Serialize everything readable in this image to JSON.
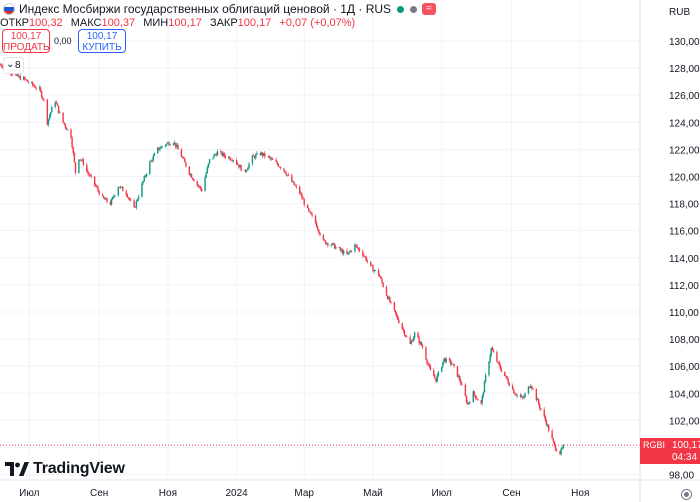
{
  "header": {
    "title": "Индекс Мосбиржи государственных облигаций ценовой · 1Д · RUS",
    "status_colors": {
      "market": "#089981",
      "delayed": "#787b86",
      "badge": "#f7525f"
    },
    "badge_text": "≈",
    "ohlc": [
      {
        "label": "ОТКР",
        "value": "100,32"
      },
      {
        "label": "МАКС",
        "value": "100,37"
      },
      {
        "label": "МИН",
        "value": "100,17"
      },
      {
        "label": "ЗАКР",
        "value": "100,17"
      },
      {
        "label": "",
        "value": "+0,07 (+0,07%)"
      }
    ]
  },
  "trade": {
    "sell_price": "100,17",
    "sell_label": "ПРОДАТЬ",
    "spread": "0,00",
    "buy_price": "100,17",
    "buy_label": "КУПИТЬ"
  },
  "indicators_toggle": {
    "count": "8",
    "icon": "chevron-down-icon"
  },
  "price_tag": {
    "symbol": "RGBI",
    "price": "100,17",
    "countdown": "04:34",
    "color": "#f23645"
  },
  "logo_text": "TradingView",
  "colors": {
    "up": "#089981",
    "down": "#f23645",
    "grid": "#f0f3fa"
  },
  "chart_data": {
    "type": "candlestick",
    "title": "Индекс Мосбиржи государственных облигаций ценовой · 1Д · RUS",
    "currency": "RUB",
    "ylim": [
      97.6,
      131.4
    ],
    "y_ticks": [
      "130,00",
      "128,00",
      "126,00",
      "124,00",
      "122,00",
      "120,00",
      "118,00",
      "116,00",
      "114,00",
      "112,00",
      "110,00",
      "108,00",
      "106,00",
      "104,00",
      "102,00",
      "100,00",
      "98,00"
    ],
    "x_ticks": [
      {
        "label": "Июл",
        "date": "2023-07-01"
      },
      {
        "label": "Сен",
        "date": "2023-09-01"
      },
      {
        "label": "Ноя",
        "date": "2023-11-01"
      },
      {
        "label": "2024",
        "date": "2024-01-01"
      },
      {
        "label": "Мар",
        "date": "2024-03-01"
      },
      {
        "label": "Май",
        "date": "2024-05-01"
      },
      {
        "label": "Июл",
        "date": "2024-07-01"
      },
      {
        "label": "Сен",
        "date": "2024-09-01"
      },
      {
        "label": "Ноя",
        "date": "2024-11-01"
      }
    ],
    "x_range": [
      "2023-06-05",
      "2024-12-24"
    ],
    "series_points": [
      [
        "2023-06-05",
        128.3
      ],
      [
        "2023-06-12",
        127.9
      ],
      [
        "2023-06-19",
        127.4
      ],
      [
        "2023-06-26",
        127.2
      ],
      [
        "2023-07-03",
        126.8
      ],
      [
        "2023-07-10",
        126.4
      ],
      [
        "2023-07-14",
        125.6
      ],
      [
        "2023-07-17",
        124.0
      ],
      [
        "2023-07-21",
        125.0
      ],
      [
        "2023-07-24",
        125.6
      ],
      [
        "2023-07-28",
        124.6
      ],
      [
        "2023-07-31",
        124.0
      ],
      [
        "2023-08-07",
        123.0
      ],
      [
        "2023-08-11",
        120.3
      ],
      [
        "2023-08-14",
        121.4
      ],
      [
        "2023-08-18",
        121.0
      ],
      [
        "2023-08-21",
        120.4
      ],
      [
        "2023-08-28",
        119.4
      ],
      [
        "2023-09-04",
        118.4
      ],
      [
        "2023-09-11",
        118.0
      ],
      [
        "2023-09-18",
        119.3
      ],
      [
        "2023-09-25",
        118.8
      ],
      [
        "2023-10-02",
        117.6
      ],
      [
        "2023-10-09",
        119.4
      ],
      [
        "2023-10-16",
        121.0
      ],
      [
        "2023-10-23",
        122.0
      ],
      [
        "2023-10-30",
        122.4
      ],
      [
        "2023-11-06",
        122.6
      ],
      [
        "2023-11-13",
        121.5
      ],
      [
        "2023-11-20",
        120.3
      ],
      [
        "2023-11-27",
        119.4
      ],
      [
        "2023-12-01",
        119.0
      ],
      [
        "2023-12-08",
        121.2
      ],
      [
        "2023-12-15",
        121.8
      ],
      [
        "2023-12-22",
        121.5
      ],
      [
        "2023-12-29",
        121.3
      ],
      [
        "2024-01-08",
        120.3
      ],
      [
        "2024-01-15",
        121.4
      ],
      [
        "2024-01-22",
        121.7
      ],
      [
        "2024-01-29",
        121.4
      ],
      [
        "2024-02-05",
        121.0
      ],
      [
        "2024-02-12",
        120.5
      ],
      [
        "2024-02-19",
        119.6
      ],
      [
        "2024-02-26",
        118.8
      ],
      [
        "2024-03-04",
        117.5
      ],
      [
        "2024-03-11",
        116.6
      ],
      [
        "2024-03-18",
        115.2
      ],
      [
        "2024-03-25",
        115.0
      ],
      [
        "2024-04-01",
        114.6
      ],
      [
        "2024-04-08",
        114.2
      ],
      [
        "2024-04-15",
        114.9
      ],
      [
        "2024-04-22",
        114.3
      ],
      [
        "2024-04-29",
        113.3
      ],
      [
        "2024-05-06",
        112.8
      ],
      [
        "2024-05-13",
        111.3
      ],
      [
        "2024-05-20",
        110.0
      ],
      [
        "2024-05-27",
        108.8
      ],
      [
        "2024-06-03",
        107.6
      ],
      [
        "2024-06-07",
        108.4
      ],
      [
        "2024-06-14",
        107.4
      ],
      [
        "2024-06-21",
        105.6
      ],
      [
        "2024-06-26",
        105.0
      ],
      [
        "2024-07-03",
        106.5
      ],
      [
        "2024-07-10",
        106.2
      ],
      [
        "2024-07-17",
        105.0
      ],
      [
        "2024-07-24",
        103.2
      ],
      [
        "2024-07-29",
        104.0
      ],
      [
        "2024-08-05",
        103.2
      ],
      [
        "2024-08-09",
        105.2
      ],
      [
        "2024-08-14",
        107.3
      ],
      [
        "2024-08-21",
        106.0
      ],
      [
        "2024-08-28",
        105.0
      ],
      [
        "2024-09-04",
        104.0
      ],
      [
        "2024-09-11",
        103.6
      ],
      [
        "2024-09-18",
        104.7
      ],
      [
        "2024-09-25",
        103.2
      ],
      [
        "2024-10-02",
        101.8
      ],
      [
        "2024-10-09",
        100.1
      ],
      [
        "2024-10-14",
        99.6
      ],
      [
        "2024-10-18",
        100.17
      ]
    ]
  }
}
